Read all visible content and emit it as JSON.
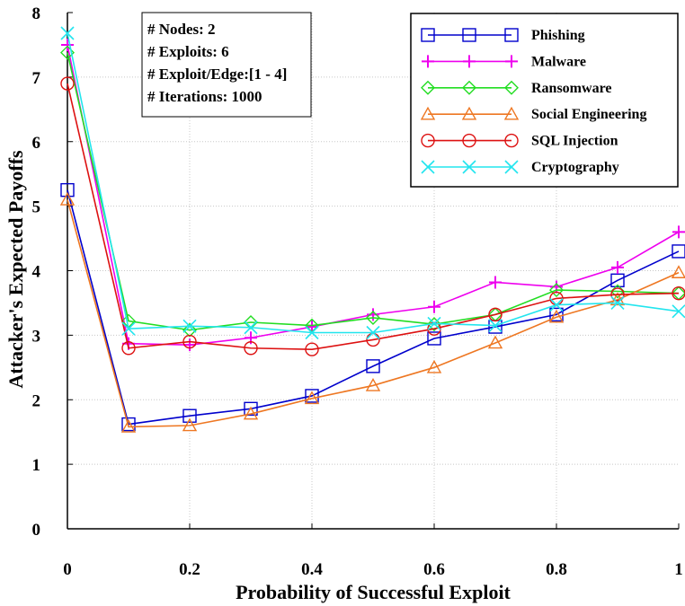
{
  "chart_data": {
    "type": "line",
    "title": "",
    "xlabel": "Probability of Successful Exploit",
    "ylabel": "Attacker's Expected Payoffs",
    "xlim": [
      0,
      1
    ],
    "ylim": [
      0,
      8
    ],
    "x_ticks": [
      0,
      0.2,
      0.4,
      0.6,
      0.8,
      1
    ],
    "x_tick_labels": [
      "0",
      "0.2",
      "0.4",
      "0.6",
      "0.8",
      "1"
    ],
    "y_ticks": [
      0,
      1,
      2,
      3,
      4,
      5,
      6,
      7,
      8
    ],
    "y_tick_labels": [
      "0",
      "1",
      "2",
      "3",
      "4",
      "5",
      "6",
      "7",
      "8"
    ],
    "grid": true,
    "legend_position": "top-right",
    "annotations": [
      "# Nodes: 2",
      "# Exploits: 6",
      "# Exploit/Edge:[1 - 4]",
      "# Iterations: 1000"
    ],
    "x": [
      0,
      0.1,
      0.2,
      0.3,
      0.4,
      0.5,
      0.6,
      0.7,
      0.8,
      0.9,
      1
    ],
    "series": [
      {
        "name": "Phishing",
        "color": "#0000cc",
        "marker": "square",
        "values": [
          5.25,
          1.62,
          1.75,
          1.86,
          2.06,
          2.52,
          2.95,
          3.13,
          3.32,
          3.85,
          4.3
        ]
      },
      {
        "name": "Malware",
        "color": "#ee00ee",
        "marker": "plus",
        "values": [
          7.5,
          2.87,
          2.85,
          2.96,
          3.13,
          3.32,
          3.44,
          3.82,
          3.75,
          4.05,
          4.6
        ]
      },
      {
        "name": "Ransomware",
        "color": "#22dd22",
        "marker": "diamond",
        "values": [
          7.38,
          3.22,
          3.08,
          3.2,
          3.15,
          3.27,
          3.17,
          3.32,
          3.7,
          3.68,
          3.65
        ]
      },
      {
        "name": "Social Engineering",
        "color": "#ee7722",
        "marker": "triangle",
        "values": [
          5.1,
          1.58,
          1.6,
          1.78,
          2.02,
          2.22,
          2.5,
          2.88,
          3.28,
          3.55,
          3.97
        ]
      },
      {
        "name": "SQL Injection",
        "color": "#dd1111",
        "marker": "circle",
        "values": [
          6.9,
          2.8,
          2.9,
          2.8,
          2.78,
          2.93,
          3.1,
          3.32,
          3.57,
          3.63,
          3.65
        ]
      },
      {
        "name": "Cryptography",
        "color": "#22e5ee",
        "marker": "x",
        "values": [
          7.68,
          3.1,
          3.14,
          3.12,
          3.04,
          3.04,
          3.18,
          3.15,
          3.47,
          3.5,
          3.37
        ]
      }
    ]
  }
}
